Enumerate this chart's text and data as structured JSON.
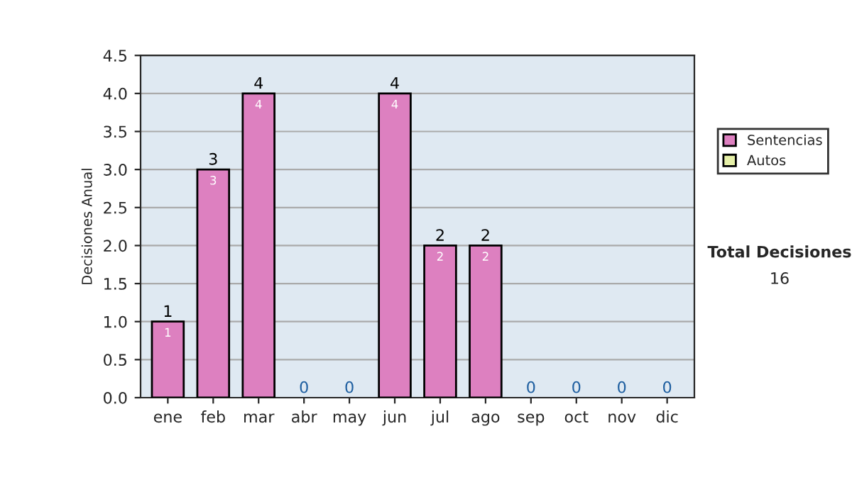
{
  "chart_data": {
    "type": "bar",
    "ylabel": "Decisiones Anual",
    "categories": [
      "ene",
      "feb",
      "mar",
      "abr",
      "may",
      "jun",
      "jul",
      "ago",
      "sep",
      "oct",
      "nov",
      "dic"
    ],
    "series": [
      {
        "name": "Sentencias",
        "color": "#dd80c0",
        "values": [
          1,
          3,
          4,
          0,
          0,
          4,
          2,
          2,
          0,
          0,
          0,
          0
        ],
        "value_labels": [
          "1",
          "3",
          "4",
          null,
          null,
          "4",
          "2",
          "2",
          null,
          null,
          null,
          null
        ]
      },
      {
        "name": "Autos",
        "color": "#e6f0a8",
        "values": [
          0,
          0,
          0,
          0,
          0,
          0,
          0,
          0,
          0,
          0,
          0,
          0
        ]
      }
    ],
    "stacked": true,
    "totals": [
      "1",
      "3",
      "4",
      "0",
      "0",
      "4",
      "2",
      "2",
      "0",
      "0",
      "0",
      "0"
    ],
    "ylim": [
      0,
      4.5
    ],
    "yticks": [
      "0.0",
      "0.5",
      "1.0",
      "1.5",
      "2.0",
      "2.5",
      "3.0",
      "3.5",
      "4.0",
      "4.5"
    ],
    "grid": "y",
    "legend": "right",
    "annotations": [
      "Total Decisiones",
      "16"
    ]
  }
}
